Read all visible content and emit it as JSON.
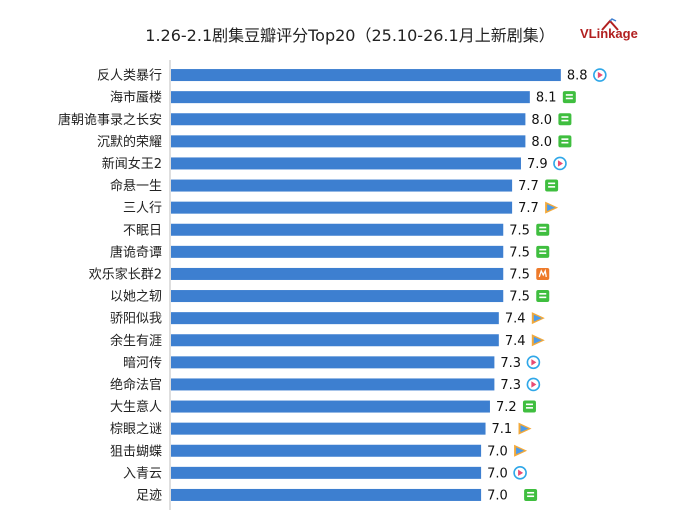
{
  "title": "1.26-2.1剧集豆瓣评分Top20（25.10-26.1月上新剧集）",
  "brand": {
    "name": "VLinkage",
    "color": "#b22020"
  },
  "colors": {
    "bar": "#3d7fd0",
    "platforms": {
      "tencent": "#4b9bea",
      "iqiyi": "#3fbe3f",
      "youku": "#2fa7e8",
      "mango": "#ee7a2a"
    }
  },
  "chart_data": {
    "type": "bar",
    "orientation": "horizontal",
    "title": "1.26-2.1剧集豆瓣评分Top20（25.10-26.1月上新剧集）",
    "xlabel": "",
    "ylabel": "",
    "xlim": [
      0,
      10
    ],
    "grid": false,
    "legend": "none",
    "categories": [
      "反人类暴行",
      "海市蜃楼",
      "唐朝诡事录之长安",
      "沉默的荣耀",
      "新闻女王2",
      "命悬一生",
      "三人行",
      "不眠日",
      "唐诡奇谭",
      "欢乐家长群2",
      "以她之轫",
      "骄阳似我",
      "余生有涯",
      "暗河传",
      "绝命法官",
      "大生意人",
      "棕眼之谜",
      "狙击蝴蝶",
      "入青云",
      "足迹"
    ],
    "values": [
      8.8,
      8.1,
      8.0,
      8.0,
      7.9,
      7.7,
      7.7,
      7.5,
      7.5,
      7.5,
      7.5,
      7.4,
      7.4,
      7.3,
      7.3,
      7.2,
      7.1,
      7.0,
      7.0,
      7.0
    ],
    "value_labels": [
      "8.8",
      "8.1",
      "8.0",
      "8.0",
      "7.9",
      "7.7",
      "7.7",
      "7.5",
      "7.5",
      "7.5",
      "7.5",
      "7.4",
      "7.4",
      "7.3",
      "7.3",
      "7.2",
      "7.1",
      "7.0",
      "7.0",
      "7.0"
    ],
    "platform_icons": [
      "youku-icon",
      "iqiyi-icon",
      "iqiyi-icon",
      "iqiyi-icon",
      "youku-icon",
      "iqiyi-icon",
      "tencent-icon",
      "iqiyi-icon",
      "iqiyi-icon",
      "mango-icon",
      "iqiyi-icon",
      "tencent-icon",
      "tencent-icon",
      "youku-icon",
      "youku-icon",
      "iqiyi-icon",
      "tencent-icon",
      "tencent-icon",
      "youku-icon",
      "iqiyi-icon"
    ]
  }
}
